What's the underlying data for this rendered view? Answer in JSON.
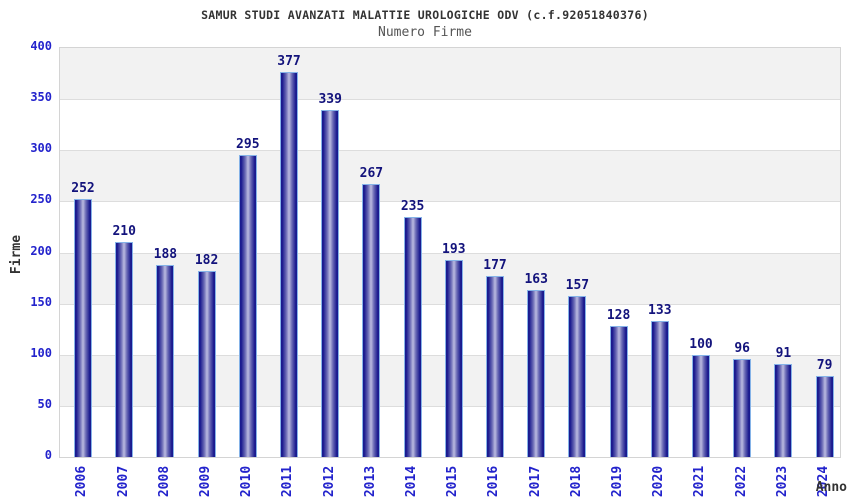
{
  "chart_data": {
    "type": "bar",
    "title": "SAMUR STUDI AVANZATI MALATTIE UROLOGICHE ODV (c.f.92051840376)",
    "subtitle": "Numero Firme",
    "xlabel": "Anno",
    "ylabel": "Firme",
    "categories": [
      "2006",
      "2007",
      "2008",
      "2009",
      "2010",
      "2011",
      "2012",
      "2013",
      "2014",
      "2015",
      "2016",
      "2017",
      "2018",
      "2019",
      "2020",
      "2021",
      "2022",
      "2023",
      "2024"
    ],
    "values": [
      252,
      210,
      188,
      182,
      295,
      377,
      339,
      267,
      235,
      193,
      177,
      163,
      157,
      128,
      133,
      100,
      96,
      91,
      79
    ],
    "ylim": [
      0,
      400
    ],
    "ytick_step": 50,
    "yticks": [
      0,
      50,
      100,
      150,
      200,
      250,
      300,
      350,
      400
    ],
    "grid": true,
    "band_stripes": true,
    "legend": null,
    "colors": {
      "axis_label": "#2323cc",
      "value_label": "#13137c",
      "bar_edge": "#85b3e8",
      "bar_dark": "#1a1a8f",
      "bar_mid": "#6a6ab5",
      "bar_light": "#b3b3dc",
      "band_gray": "#f2f2f2",
      "band_white": "#ffffff",
      "grid": "#dddddd",
      "title": "#333333",
      "subtitle": "#555555"
    }
  }
}
